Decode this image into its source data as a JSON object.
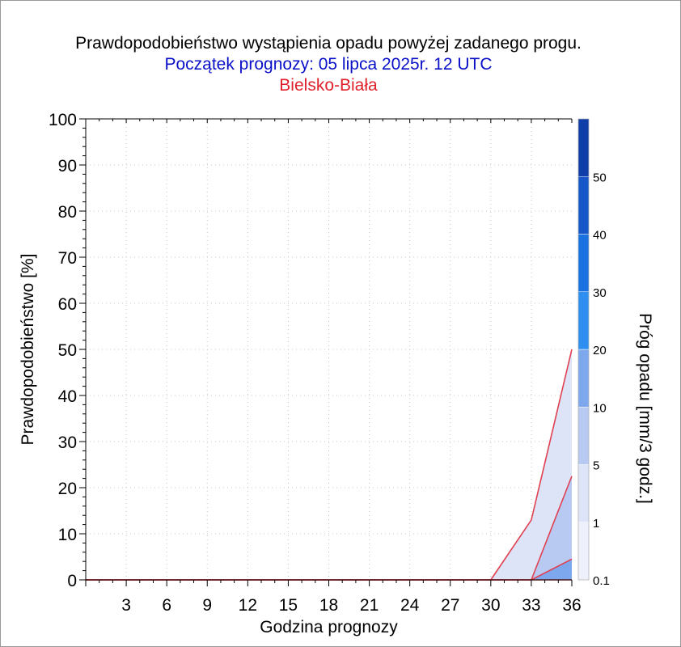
{
  "titles": {
    "main": "Prawdopodobieństwo wystąpienia opadu powyżej zadanego progu.",
    "start": "Początek prognozy: 05 lipca 2025r. 12 UTC",
    "location": "Bielsko-Biała"
  },
  "colors": {
    "title": "#000000",
    "start": "#0a10c8",
    "location": "#e0202a",
    "line": "#e04050",
    "grid": "#c8c8c8"
  },
  "chart_data": {
    "type": "area",
    "xlabel": "Godzina prognozy",
    "ylabel": "Prawdopodobieństwo [%]",
    "colorbar_label": "Próg opadu [mm/3 godz.]",
    "xlim": [
      0,
      36
    ],
    "ylim": [
      0,
      100
    ],
    "xticks": [
      3,
      6,
      9,
      12,
      15,
      18,
      21,
      24,
      27,
      30,
      33,
      36
    ],
    "yticks": [
      0,
      10,
      20,
      30,
      40,
      50,
      60,
      70,
      80,
      90,
      100
    ],
    "grid": true,
    "x": [
      0,
      3,
      6,
      9,
      12,
      15,
      18,
      21,
      24,
      27,
      30,
      33,
      36
    ],
    "series": [
      {
        "threshold": 0.1,
        "color": "#dde4f8",
        "values": [
          0,
          0,
          0,
          0,
          0,
          0,
          0,
          0,
          0,
          0,
          0,
          13,
          50
        ]
      },
      {
        "threshold": 1,
        "color": "#b8caf2",
        "values": [
          0,
          0,
          0,
          0,
          0,
          0,
          0,
          0,
          0,
          0,
          0,
          0,
          22.5
        ]
      },
      {
        "threshold": 5,
        "color": "#7ea8ee",
        "values": [
          0,
          0,
          0,
          0,
          0,
          0,
          0,
          0,
          0,
          0,
          0,
          0,
          4.5
        ]
      },
      {
        "threshold": 10,
        "color": "#5590ea",
        "values": [
          0,
          0,
          0,
          0,
          0,
          0,
          0,
          0,
          0,
          0,
          0,
          0,
          0
        ]
      }
    ],
    "colorbar": {
      "labels": [
        "0.1",
        "1",
        "5",
        "10",
        "20",
        "30",
        "40",
        "50"
      ],
      "colors": [
        "#eef0fb",
        "#dde4f8",
        "#b8caf2",
        "#7ea8ee",
        "#2f8ff0",
        "#1a72e0",
        "#1658c8",
        "#0f3fa8"
      ]
    }
  }
}
